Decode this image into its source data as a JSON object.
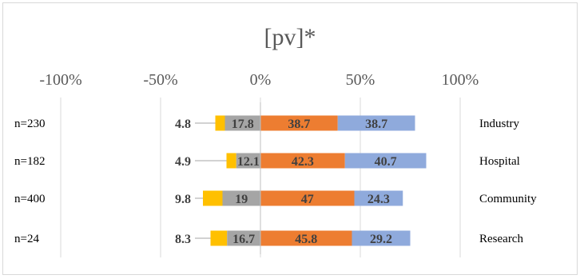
{
  "chart_data": {
    "type": "bar",
    "orientation": "horizontal",
    "stacking": "diverging",
    "title": "[pv]*",
    "x_ticks": [
      "-100%",
      "-50%",
      "0%",
      "50%",
      "100%"
    ],
    "x_tick_values": [
      -100,
      -50,
      0,
      50,
      100
    ],
    "xlim": [
      -100,
      100
    ],
    "grid": true,
    "legend": "none",
    "categories": [
      "Industry",
      "Hospital",
      "Community",
      "Research"
    ],
    "sample_sizes": [
      "n=230",
      "n=182",
      "n=400",
      "n=24"
    ],
    "series": [
      {
        "color": "#ffc000",
        "side": "negative",
        "values": [
          4.8,
          4.9,
          9.8,
          8.3
        ],
        "labels": [
          "4.8",
          "4.9",
          "9.8",
          "8.3"
        ]
      },
      {
        "color": "#a5a5a5",
        "side": "negative",
        "values": [
          17.8,
          12.1,
          19,
          16.7
        ],
        "labels": [
          "17.8",
          "12.1",
          "19",
          "16.7"
        ]
      },
      {
        "color": "#ed7d31",
        "side": "positive",
        "values": [
          38.7,
          42.3,
          47,
          45.8
        ],
        "labels": [
          "38.7",
          "42.3",
          "47",
          "45.8"
        ]
      },
      {
        "color": "#8faadc",
        "side": "positive",
        "values": [
          38.7,
          40.7,
          24.3,
          29.2
        ],
        "labels": [
          "38.7",
          "40.7",
          "24.3",
          "29.2"
        ]
      }
    ]
  }
}
